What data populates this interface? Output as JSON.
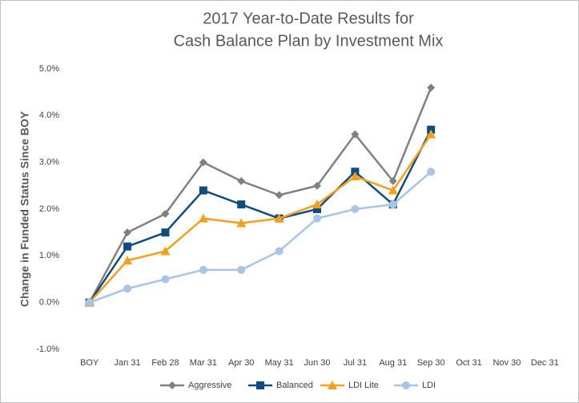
{
  "chart_data": {
    "type": "line",
    "title": [
      "2017 Year-to-Date Results for",
      "Cash Balance Plan by Investment Mix"
    ],
    "y_label": "Change in Funded Status Since BOY",
    "categories": [
      "BOY",
      "Jan 31",
      "Feb 28",
      "Mar 31",
      "Apr 30",
      "May 31",
      "Jun 30",
      "Jul 31",
      "Aug 31",
      "Sep 30",
      "Oct 31",
      "Nov 30",
      "Dec 31"
    ],
    "series": [
      {
        "name": "Aggressive",
        "color": "#808080",
        "marker": "diamond",
        "values": [
          0,
          1.5,
          1.9,
          3.0,
          2.6,
          2.3,
          2.5,
          3.6,
          2.6,
          4.6,
          null,
          null,
          null
        ]
      },
      {
        "name": "Balanced",
        "color": "#0f4c81",
        "marker": "square",
        "values": [
          0,
          1.2,
          1.5,
          2.4,
          2.1,
          1.8,
          2.0,
          2.8,
          2.1,
          3.7,
          null,
          null,
          null
        ]
      },
      {
        "name": "LDI Lite",
        "color": "#f4a01c",
        "marker": "triangle",
        "values": [
          0,
          0.9,
          1.1,
          1.8,
          1.7,
          1.8,
          2.1,
          2.7,
          2.4,
          3.6,
          null,
          null,
          null
        ]
      },
      {
        "name": "LDI",
        "color": "#a9c4e6",
        "marker": "circle",
        "values": [
          0,
          0.3,
          0.5,
          0.7,
          0.7,
          1.1,
          1.8,
          2.0,
          2.1,
          2.8,
          null,
          null,
          null
        ]
      }
    ],
    "ylim": [
      -1,
      5
    ],
    "yticks": [
      {
        "value": -1,
        "label": "-1.0%"
      },
      {
        "value": 0,
        "label": "0.0%"
      },
      {
        "value": 1,
        "label": "1.0%"
      },
      {
        "value": 2,
        "label": "2.0%"
      },
      {
        "value": 3,
        "label": "3.0%"
      },
      {
        "value": 4,
        "label": "4.0%"
      },
      {
        "value": 5,
        "label": "5.0%"
      }
    ],
    "grid": false,
    "legend": "bottom"
  }
}
